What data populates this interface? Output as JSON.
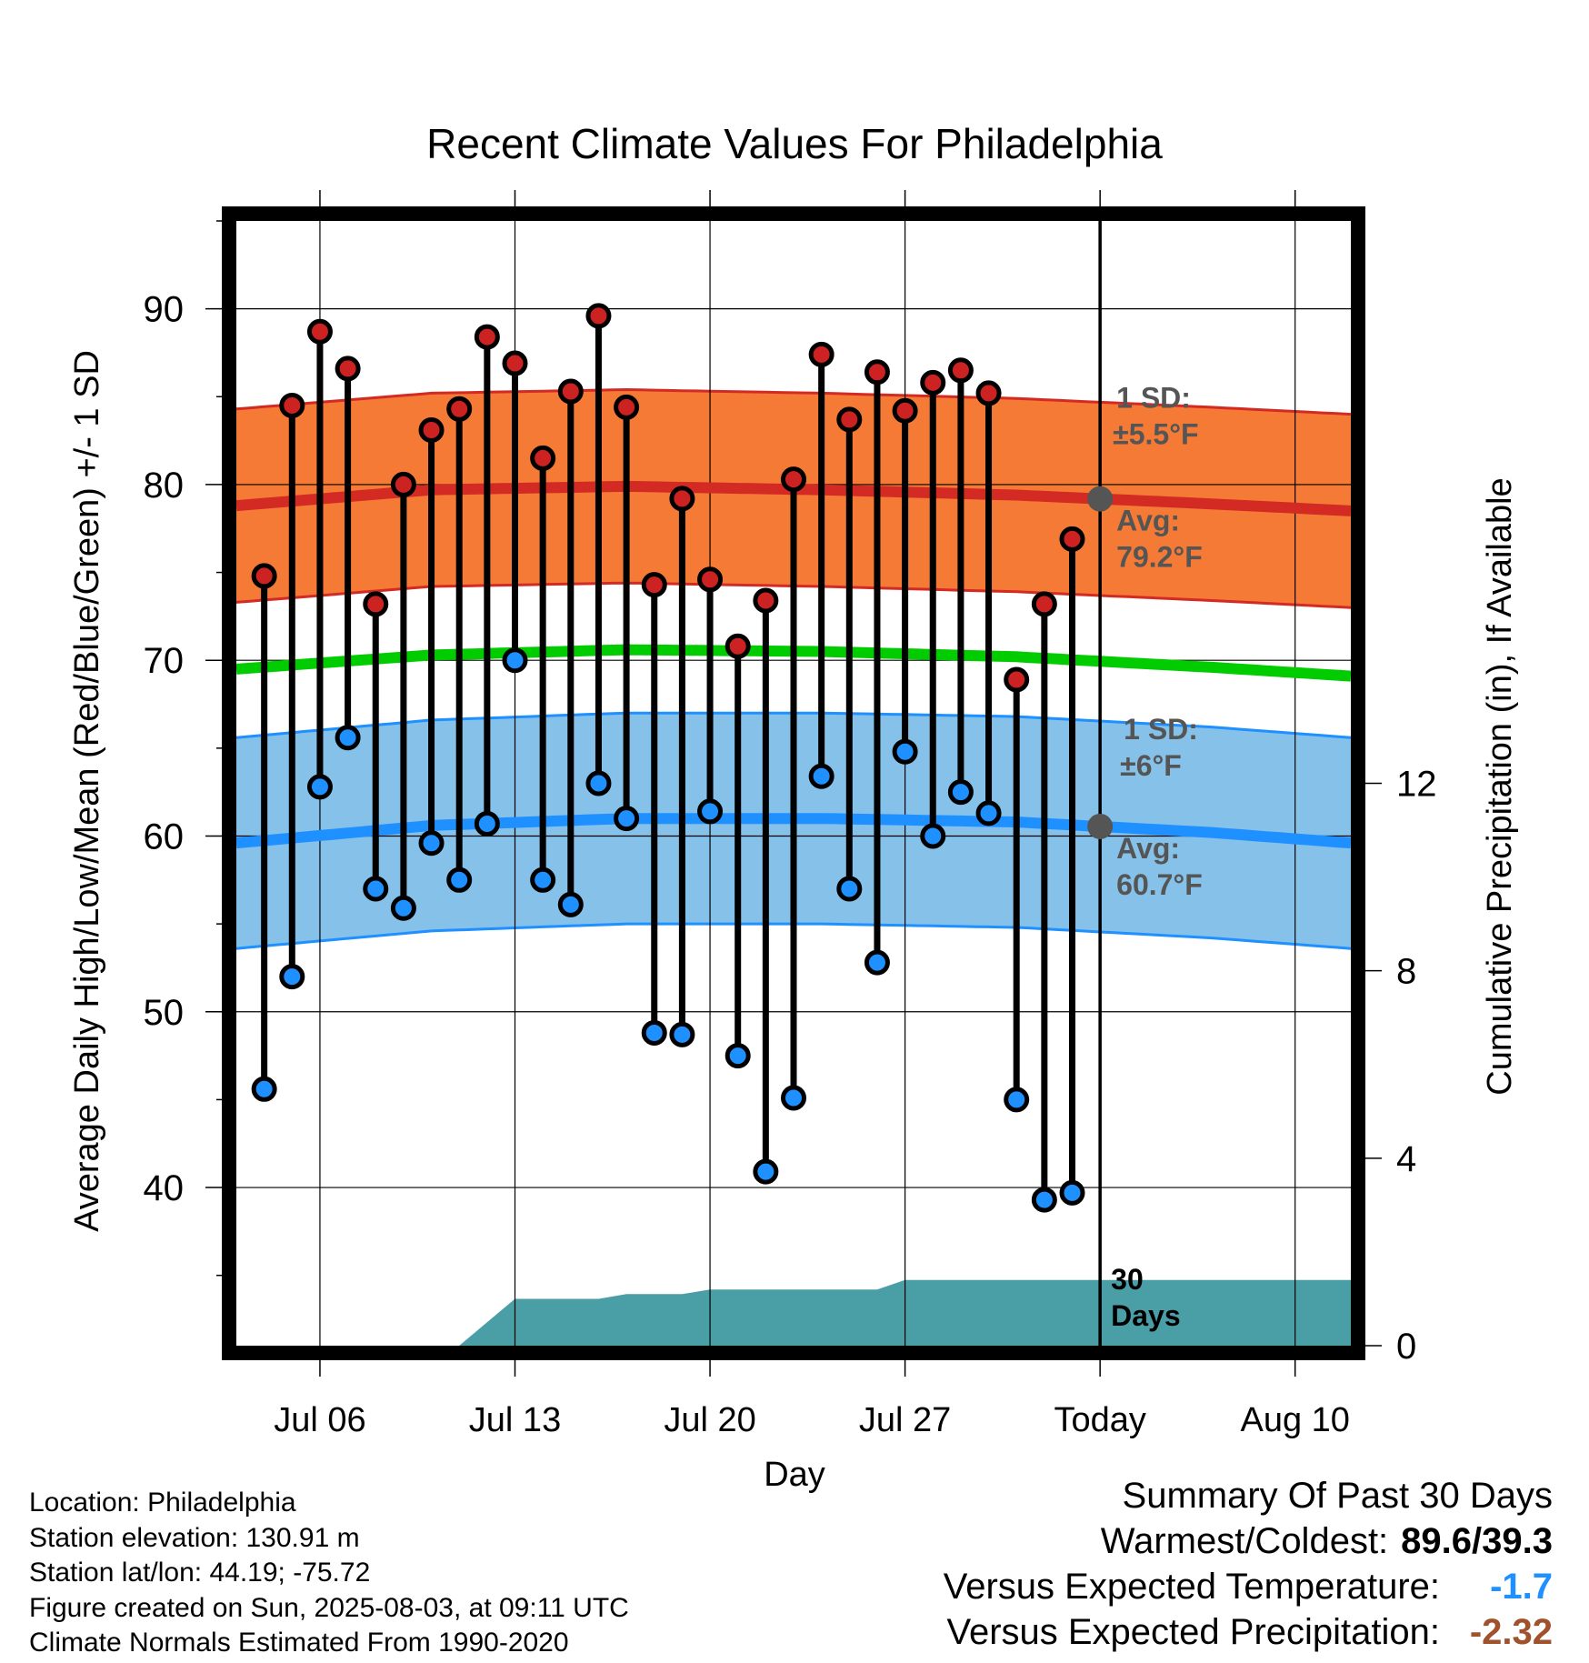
{
  "title": "Recent Climate Values For Philadelphia",
  "y_left_label": "Average Daily High/Low/Mean (Red/Blue/Green) +/- 1 SD",
  "y_right_label": "Cumulative Precipitation (in), If Available",
  "x_label": "Day",
  "colors": {
    "high_band": "#f47a35",
    "high_line": "#d42a24",
    "low_band": "#85c1e9",
    "low_line": "#1e90ff",
    "mean_line": "#00cc00",
    "precip_fill": "#4a9ea6",
    "high_marker": "#cc2222",
    "low_marker": "#1e90ff",
    "summary_cold": "#1e90ff",
    "summary_dry": "#a0522d"
  },
  "annotations": {
    "high_sd_line1": "1 SD:",
    "high_sd_line2": "±5.5°F",
    "high_avg_line1": "Avg:",
    "high_avg_line2": "79.2°F",
    "low_sd_line1": "1 SD:",
    "low_sd_line2": "±6°F",
    "low_avg_line1": "Avg:",
    "low_avg_line2": "60.7°F",
    "days_line1": "30",
    "days_line2": "Days"
  },
  "info": {
    "location": "Location: Philadelphia",
    "elevation": "Station elevation: 130.91 m",
    "latlon": "Station lat/lon: 44.19; -75.72",
    "created": "Figure created on Sun, 2025-08-03, at 09:11 UTC",
    "normals": "Climate Normals Estimated From 1990-2020"
  },
  "summary": {
    "heading": "Summary Of Past 30 Days",
    "warm_cold_label": "Warmest/Coldest:",
    "warm_cold_value": "89.6/39.3",
    "temp_label": "Versus Expected Temperature:",
    "temp_value": "-1.7",
    "precip_label": "Versus Expected Precipitation:",
    "precip_value": "-2.32"
  },
  "chart_data": {
    "type": "line",
    "title": "Recent Climate Values For Philadelphia",
    "xlabel": "Day",
    "ylabel": "Average Daily High/Low/Mean (Red/Blue/Green) +/- 1 SD",
    "y2label": "Cumulative Precipitation (in), If Available",
    "ylim": [
      31,
      95
    ],
    "y2lim": [
      0,
      24
    ],
    "x_range": [
      "2025-07-03",
      "2025-08-12"
    ],
    "x_ticks": [
      {
        "date": "2025-07-06",
        "label": "Jul 06"
      },
      {
        "date": "2025-07-13",
        "label": "Jul 13"
      },
      {
        "date": "2025-07-20",
        "label": "Jul 20"
      },
      {
        "date": "2025-07-27",
        "label": "Jul 27"
      },
      {
        "date": "2025-08-03",
        "label": "Today"
      },
      {
        "date": "2025-08-10",
        "label": "Aug 10"
      }
    ],
    "y_ticks": [
      40,
      50,
      60,
      70,
      80,
      90
    ],
    "y2_ticks": [
      0,
      4,
      8,
      12
    ],
    "today": "2025-08-03",
    "grid": true,
    "days": [
      "2025-07-04",
      "2025-07-05",
      "2025-07-06",
      "2025-07-07",
      "2025-07-08",
      "2025-07-09",
      "2025-07-10",
      "2025-07-11",
      "2025-07-12",
      "2025-07-13",
      "2025-07-14",
      "2025-07-15",
      "2025-07-16",
      "2025-07-17",
      "2025-07-18",
      "2025-07-19",
      "2025-07-20",
      "2025-07-21",
      "2025-07-22",
      "2025-07-23",
      "2025-07-24",
      "2025-07-25",
      "2025-07-26",
      "2025-07-27",
      "2025-07-28",
      "2025-07-29",
      "2025-07-30",
      "2025-07-31",
      "2025-08-01",
      "2025-08-02"
    ],
    "series": [
      {
        "name": "High",
        "values": [
          74.8,
          84.5,
          88.7,
          86.6,
          73.2,
          80.0,
          83.1,
          84.3,
          88.4,
          86.9,
          81.5,
          85.3,
          89.6,
          84.4,
          74.3,
          79.2,
          74.6,
          70.8,
          73.4,
          80.3,
          87.4,
          83.7,
          86.4,
          84.2,
          85.8,
          86.5,
          85.2,
          68.9,
          73.2,
          76.9
        ]
      },
      {
        "name": "Low",
        "values": [
          45.6,
          52.0,
          62.8,
          65.6,
          57.0,
          55.9,
          59.6,
          57.5,
          60.7,
          70.0,
          57.5,
          56.1,
          63.0,
          61.0,
          48.8,
          48.7,
          61.4,
          47.5,
          40.9,
          45.1,
          63.4,
          57.0,
          52.8,
          64.8,
          60.0,
          62.5,
          61.3,
          45.0,
          39.3,
          39.7
        ]
      }
    ],
    "normals": {
      "dates": [
        "2025-07-03",
        "2025-07-10",
        "2025-07-17",
        "2025-07-24",
        "2025-07-31",
        "2025-08-07",
        "2025-08-12"
      ],
      "high_avg": [
        78.8,
        79.7,
        79.9,
        79.7,
        79.4,
        78.9,
        78.5
      ],
      "high_sd": 5.5,
      "low_avg": [
        59.6,
        60.6,
        61.0,
        61.0,
        60.8,
        60.2,
        59.6
      ],
      "low_sd": 6,
      "mean_avg": [
        69.5,
        70.3,
        70.6,
        70.5,
        70.2,
        69.6,
        69.1
      ]
    },
    "precipitation": {
      "dates": [
        "2025-07-11",
        "2025-07-13",
        "2025-07-16",
        "2025-07-17",
        "2025-07-19",
        "2025-07-20",
        "2025-07-26",
        "2025-07-27",
        "2025-08-12"
      ],
      "values": [
        0.0,
        1.0,
        1.0,
        1.1,
        1.1,
        1.2,
        1.2,
        1.4,
        1.4
      ]
    }
  }
}
